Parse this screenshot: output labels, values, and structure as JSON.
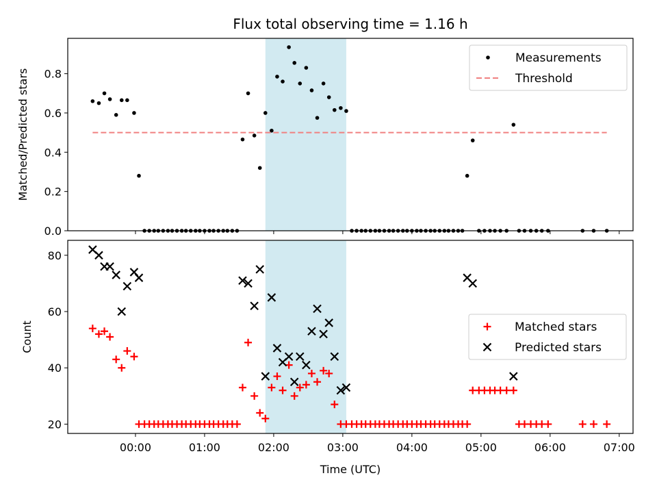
{
  "chart_data": [
    {
      "panel": "top",
      "type": "scatter",
      "title": "Flux total observing time = 1.16 h",
      "ylabel": "Matched/Predicted stars",
      "ylim": [
        0,
        0.98
      ],
      "yticks": [
        0.0,
        0.2,
        0.4,
        0.6,
        0.8
      ],
      "ytick_labels": [
        "0.0",
        "0.2",
        "0.4",
        "0.6",
        "0.8"
      ],
      "xlim": [
        -0.98,
        7.2
      ],
      "highlight_span": [
        1.88,
        3.05
      ],
      "colors": {
        "measurements": "#000000",
        "threshold": "#f08080",
        "span": "#add8e6"
      },
      "legend_position": "upper right",
      "series": [
        {
          "name": "Measurements",
          "marker": "dot",
          "x": [
            -0.62,
            -0.53,
            -0.45,
            -0.37,
            -0.28,
            -0.2,
            -0.12,
            -0.02,
            0.05,
            0.13,
            0.2,
            0.27,
            0.33,
            0.4,
            0.47,
            0.53,
            0.6,
            0.67,
            0.73,
            0.8,
            0.87,
            0.93,
            1.0,
            1.07,
            1.13,
            1.2,
            1.27,
            1.33,
            1.4,
            1.47,
            1.55,
            1.63,
            1.72,
            1.8,
            1.88,
            1.97,
            2.05,
            2.13,
            2.22,
            2.3,
            2.38,
            2.47,
            2.55,
            2.63,
            2.72,
            2.8,
            2.88,
            2.97,
            3.05,
            3.13,
            3.2,
            3.27,
            3.33,
            3.4,
            3.47,
            3.53,
            3.6,
            3.67,
            3.73,
            3.8,
            3.87,
            3.93,
            4.0,
            4.07,
            4.13,
            4.2,
            4.27,
            4.33,
            4.4,
            4.47,
            4.53,
            4.6,
            4.67,
            4.73,
            4.8,
            4.88,
            4.97,
            5.05,
            5.13,
            5.2,
            5.28,
            5.37,
            5.47,
            5.55,
            5.63,
            5.72,
            5.8,
            5.88,
            5.97,
            6.47,
            6.63,
            6.82
          ],
          "y": [
            0.66,
            0.65,
            0.7,
            0.67,
            0.59,
            0.665,
            0.665,
            0.6,
            0.28,
            0,
            0,
            0,
            0,
            0,
            0,
            0,
            0,
            0,
            0,
            0,
            0,
            0,
            0,
            0,
            0,
            0,
            0,
            0,
            0,
            0,
            0.465,
            0.7,
            0.485,
            0.32,
            0.6,
            0.51,
            0.785,
            0.76,
            0.935,
            0.855,
            0.75,
            0.83,
            0.715,
            0.575,
            0.75,
            0.68,
            0.615,
            0.625,
            0.61,
            0,
            0,
            0,
            0,
            0,
            0,
            0,
            0,
            0,
            0,
            0,
            0,
            0,
            0,
            0,
            0,
            0,
            0,
            0,
            0,
            0,
            0,
            0,
            0,
            0,
            0.28,
            0.46,
            0,
            0,
            0,
            0,
            0,
            0,
            0.54,
            0,
            0,
            0,
            0,
            0,
            0,
            0,
            0,
            0
          ]
        },
        {
          "name": "Threshold",
          "marker": "dashed-line",
          "x": [
            -0.62,
            6.82
          ],
          "y": [
            0.5,
            0.5
          ]
        }
      ]
    },
    {
      "panel": "bottom",
      "type": "scatter",
      "xlabel": "Time (UTC)",
      "ylabel": "Count",
      "ylim": [
        16.7,
        85.3
      ],
      "yticks": [
        20,
        40,
        60,
        80
      ],
      "ytick_labels": [
        "20",
        "40",
        "60",
        "80"
      ],
      "xlim": [
        -0.98,
        7.2
      ],
      "xticks": [
        0,
        1,
        2,
        3,
        4,
        5,
        6,
        7
      ],
      "xtick_labels": [
        "00:00",
        "01:00",
        "02:00",
        "03:00",
        "04:00",
        "05:00",
        "06:00",
        "07:00"
      ],
      "highlight_span": [
        1.88,
        3.05
      ],
      "colors": {
        "matched": "#ff0000",
        "predicted": "#000000",
        "span": "#add8e6"
      },
      "legend_position": "center right",
      "series": [
        {
          "name": "Matched stars",
          "marker": "plus",
          "x": [
            -0.62,
            -0.53,
            -0.45,
            -0.37,
            -0.28,
            -0.2,
            -0.12,
            -0.02,
            0.05,
            0.13,
            0.2,
            0.27,
            0.33,
            0.4,
            0.47,
            0.53,
            0.6,
            0.67,
            0.73,
            0.8,
            0.87,
            0.93,
            1.0,
            1.07,
            1.13,
            1.2,
            1.27,
            1.33,
            1.4,
            1.47,
            1.55,
            1.63,
            1.72,
            1.8,
            1.88,
            1.97,
            2.05,
            2.13,
            2.22,
            2.3,
            2.38,
            2.47,
            2.55,
            2.63,
            2.72,
            2.8,
            2.88,
            2.97,
            3.05,
            3.13,
            3.2,
            3.27,
            3.33,
            3.4,
            3.47,
            3.53,
            3.6,
            3.67,
            3.73,
            3.8,
            3.87,
            3.93,
            4.0,
            4.07,
            4.13,
            4.2,
            4.27,
            4.33,
            4.4,
            4.47,
            4.53,
            4.6,
            4.67,
            4.73,
            4.8,
            4.88,
            4.97,
            5.05,
            5.13,
            5.2,
            5.28,
            5.37,
            5.47,
            5.55,
            5.63,
            5.72,
            5.8,
            5.88,
            5.97,
            6.47,
            6.63,
            6.82
          ],
          "y": [
            54,
            52,
            53,
            51,
            43,
            40,
            46,
            44,
            20,
            20,
            20,
            20,
            20,
            20,
            20,
            20,
            20,
            20,
            20,
            20,
            20,
            20,
            20,
            20,
            20,
            20,
            20,
            20,
            20,
            20,
            33,
            49,
            30,
            24,
            22,
            33,
            37,
            32,
            41,
            30,
            33,
            34,
            38,
            35,
            39,
            38,
            27,
            20,
            20,
            20,
            20,
            20,
            20,
            20,
            20,
            20,
            20,
            20,
            20,
            20,
            20,
            20,
            20,
            20,
            20,
            20,
            20,
            20,
            20,
            20,
            20,
            20,
            20,
            20,
            20,
            32,
            32,
            32,
            32,
            32,
            32,
            32,
            32,
            20,
            20,
            20,
            20,
            20,
            20,
            20,
            20,
            20
          ]
        },
        {
          "name": "Predicted stars",
          "marker": "x",
          "x": [
            -0.62,
            -0.53,
            -0.45,
            -0.37,
            -0.28,
            -0.2,
            -0.12,
            -0.02,
            0.05,
            1.55,
            1.63,
            1.72,
            1.8,
            1.88,
            1.97,
            2.05,
            2.13,
            2.22,
            2.3,
            2.38,
            2.47,
            2.55,
            2.63,
            2.72,
            2.8,
            2.88,
            2.97,
            3.05,
            4.8,
            4.88,
            5.47
          ],
          "y": [
            82,
            80,
            76,
            76,
            73,
            60,
            69,
            74,
            72,
            71,
            70,
            62,
            75,
            37,
            65,
            47,
            42,
            44,
            35,
            44,
            41,
            53,
            61,
            52,
            56,
            44,
            32,
            33,
            72,
            70,
            37
          ]
        }
      ]
    }
  ]
}
